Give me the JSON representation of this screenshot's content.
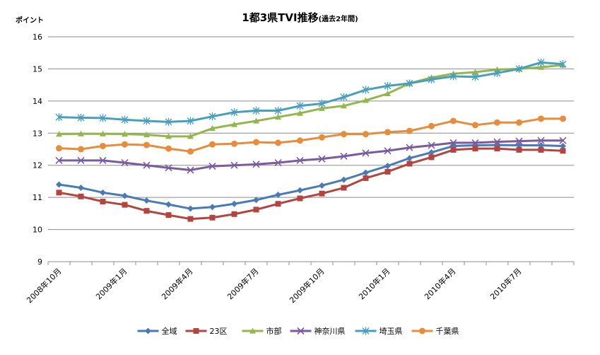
{
  "chart_data": {
    "type": "line",
    "title": "1都3県TVI推移",
    "subtitle": "(過去2年間)",
    "ylabel": "ポイント",
    "xlabel": "",
    "ylim": [
      9,
      16
    ],
    "yticks": [
      9,
      10,
      11,
      12,
      13,
      14,
      15,
      16
    ],
    "grid": true,
    "legend_position": "bottom",
    "x_tick_labels": [
      {
        "index": 0,
        "label": "2008年10月"
      },
      {
        "index": 3,
        "label": "2009年1月"
      },
      {
        "index": 6,
        "label": "2009年4月"
      },
      {
        "index": 9,
        "label": "2009年7月"
      },
      {
        "index": 12,
        "label": "2009年10月"
      },
      {
        "index": 15,
        "label": "2010年1月"
      },
      {
        "index": 18,
        "label": "2010年4月"
      },
      {
        "index": 21,
        "label": "2010年7月"
      }
    ],
    "n_points": 24,
    "series": [
      {
        "name": "全域",
        "color": "#4a7ab5",
        "marker": "diamond",
        "values": [
          11.4,
          11.3,
          11.15,
          11.05,
          10.9,
          10.78,
          10.65,
          10.7,
          10.8,
          10.92,
          11.08,
          11.22,
          11.37,
          11.55,
          11.77,
          11.98,
          12.22,
          12.4,
          12.6,
          12.62,
          12.63,
          12.62,
          12.62,
          12.6
        ]
      },
      {
        "name": "23区",
        "color": "#b34541",
        "marker": "square",
        "values": [
          11.15,
          11.03,
          10.87,
          10.77,
          10.58,
          10.45,
          10.33,
          10.37,
          10.48,
          10.62,
          10.8,
          10.97,
          11.12,
          11.3,
          11.6,
          11.8,
          12.05,
          12.25,
          12.48,
          12.52,
          12.52,
          12.48,
          12.48,
          12.45
        ]
      },
      {
        "name": "市部",
        "color": "#93b64e",
        "marker": "triangle",
        "values": [
          12.97,
          12.98,
          12.98,
          12.97,
          12.95,
          12.9,
          12.9,
          13.15,
          13.27,
          13.38,
          13.5,
          13.62,
          13.77,
          13.85,
          14.02,
          14.23,
          14.55,
          14.73,
          14.85,
          14.9,
          14.98,
          15.0,
          15.05,
          15.12
        ]
      },
      {
        "name": "神奈川県",
        "color": "#7a5b9e",
        "marker": "x",
        "values": [
          12.15,
          12.15,
          12.15,
          12.08,
          12.0,
          11.92,
          11.85,
          11.97,
          12.0,
          12.03,
          12.08,
          12.15,
          12.2,
          12.28,
          12.38,
          12.45,
          12.55,
          12.62,
          12.7,
          12.7,
          12.73,
          12.75,
          12.77,
          12.77
        ]
      },
      {
        "name": "埼玉県",
        "color": "#4a9ebd",
        "marker": "star",
        "values": [
          13.5,
          13.48,
          13.47,
          13.42,
          13.38,
          13.35,
          13.38,
          13.52,
          13.65,
          13.7,
          13.7,
          13.85,
          13.92,
          14.12,
          14.35,
          14.47,
          14.55,
          14.67,
          14.77,
          14.75,
          14.87,
          15.0,
          15.2,
          15.15
        ]
      },
      {
        "name": "千葉県",
        "color": "#e58d3c",
        "marker": "circle",
        "values": [
          12.53,
          12.5,
          12.6,
          12.65,
          12.63,
          12.52,
          12.43,
          12.65,
          12.67,
          12.72,
          12.7,
          12.77,
          12.87,
          12.97,
          12.97,
          13.03,
          13.07,
          13.22,
          13.38,
          13.25,
          13.33,
          13.33,
          13.45,
          13.45
        ]
      }
    ]
  }
}
